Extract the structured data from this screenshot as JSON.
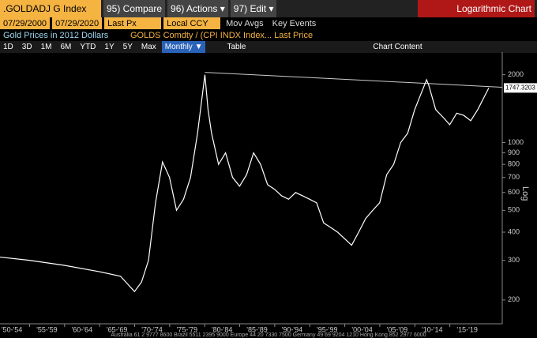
{
  "toolbar": {
    "ticker": ".GOLDADJ G Index",
    "compare": "95) Compare",
    "actions": "96) Actions ▾",
    "edit": "97) Edit ▾",
    "mode": "Logarithmic Chart"
  },
  "settings": {
    "start": "07/29/2000",
    "end": "07/29/2020",
    "field": "Last Px",
    "currency": "Local CCY",
    "mov_avgs": "Mov Avgs",
    "key_events": "Key Events"
  },
  "legend_row": {
    "name": "Gold Prices in 2012 Dollars",
    "formula": "GOLDS Comdty / (CPI INDX Index... Last Price"
  },
  "periods": [
    "1D",
    "3D",
    "1M",
    "6M",
    "YTD",
    "1Y",
    "5Y",
    "Max"
  ],
  "tabs": {
    "frequency": "Monthly ▼",
    "table": "Table",
    "content": "Chart Content"
  },
  "footer": "Australia 61 2 9777 8600 Brazil 5511 2395 9000 Europe 44 20 7330 7500 Germany 49 69 9204 1210 Hong Kong 852 2977 6000",
  "chart_data": {
    "type": "line",
    "log_scale": true,
    "axis_label": "Log",
    "last_label": "1747.3203",
    "xlim": [
      1950.8,
      2022.5
    ],
    "xticks": [
      {
        "value": 1952.5,
        "label": "'50-'54"
      },
      {
        "value": 1957.5,
        "label": "'55-'59"
      },
      {
        "value": 1962.5,
        "label": "'60-'64"
      },
      {
        "value": 1967.5,
        "label": "'65-'69"
      },
      {
        "value": 1972.5,
        "label": "'70-'74"
      },
      {
        "value": 1977.5,
        "label": "'75-'79"
      },
      {
        "value": 1982.5,
        "label": "'80-'84"
      },
      {
        "value": 1987.5,
        "label": "'85-'89"
      },
      {
        "value": 1992.5,
        "label": "'90-'94"
      },
      {
        "value": 1997.5,
        "label": "'95-'99"
      },
      {
        "value": 2002.5,
        "label": "'00-'04"
      },
      {
        "value": 2007.5,
        "label": "'05-'09"
      },
      {
        "value": 2012.5,
        "label": "'10-'14"
      },
      {
        "value": 2017.5,
        "label": "'15-'19"
      }
    ],
    "ylim": [
      170,
      2520
    ],
    "yticks": [
      200,
      300,
      400,
      500,
      600,
      700,
      800,
      900,
      1000,
      2000
    ],
    "series": [
      {
        "name": "Gold Prices in 2012 Dollars",
        "color": "#ffffff",
        "x": [
          1950.8,
          1955,
          1960,
          1965,
          1968,
          1970,
          1971,
          1972,
          1973,
          1974,
          1975,
          1976,
          1977,
          1978,
          1979,
          1980.05,
          1980.5,
          1981,
          1982,
          1983,
          1984,
          1985,
          1986,
          1987,
          1988,
          1989,
          1990,
          1991,
          1992,
          1993,
          1994,
          1995,
          1996,
          1997,
          1998,
          1999,
          2001,
          2002,
          2003,
          2004,
          2005,
          2006,
          2007,
          2008,
          2009,
          2010,
          2011.7,
          2012,
          2013,
          2014,
          2015,
          2016,
          2017,
          2018,
          2019,
          2020.58
        ],
        "values": [
          310,
          300,
          285,
          267,
          255,
          218,
          240,
          300,
          540,
          820,
          700,
          500,
          560,
          700,
          1100,
          2000,
          1400,
          1100,
          800,
          900,
          700,
          640,
          720,
          900,
          800,
          650,
          620,
          580,
          560,
          600,
          580,
          560,
          540,
          440,
          420,
          400,
          350,
          400,
          460,
          500,
          540,
          720,
          800,
          1000,
          1100,
          1400,
          1900,
          1800,
          1400,
          1300,
          1200,
          1350,
          1320,
          1250,
          1400,
          1747.3203
        ]
      }
    ],
    "trendline": {
      "color": "#cccccc",
      "x": [
        1980.05,
        2022.5
      ],
      "values": [
        2050,
        1760
      ]
    }
  }
}
